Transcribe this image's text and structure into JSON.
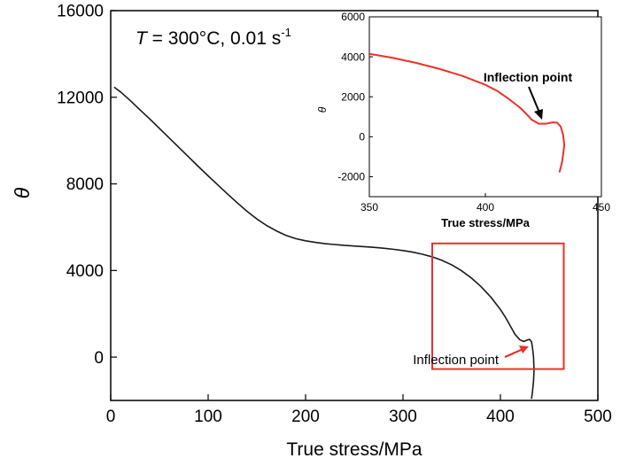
{
  "chart_data": [
    {
      "type": "line",
      "id": "main",
      "xlabel": "True stress/MPa",
      "ylabel": "θ",
      "xlim": [
        0,
        500
      ],
      "ylim": [
        -2000,
        16000
      ],
      "xticks": [
        "0",
        "100",
        "200",
        "300",
        "400",
        "500"
      ],
      "xtick_values": [
        0,
        100,
        200,
        300,
        400,
        500
      ],
      "yticks": [
        "0",
        "4000",
        "8000",
        "12000",
        "16000"
      ],
      "ytick_values": [
        0,
        4000,
        8000,
        12000,
        16000
      ],
      "grid": false,
      "title_parts": {
        "italic": "T",
        "main": " = 300°C, 0.01 s",
        "sup": "-1"
      },
      "annotation": "Inflection point",
      "highlight_box": {
        "x": [
          330,
          465
        ],
        "y": [
          -550,
          5250
        ]
      },
      "series": [
        {
          "color": "#1a1a1a",
          "x": [
            4,
            10,
            20,
            30,
            40,
            50,
            60,
            70,
            80,
            90,
            100,
            110,
            120,
            130,
            140,
            150,
            160,
            170,
            180,
            190,
            200,
            210,
            220,
            230,
            240,
            250,
            260,
            270,
            280,
            290,
            300,
            310,
            320,
            330,
            340,
            350,
            360,
            370,
            380,
            390,
            400,
            405,
            410,
            415,
            420,
            424,
            427,
            430,
            432,
            433,
            434,
            434.5,
            434,
            433,
            432
          ],
          "y": [
            12450,
            12250,
            11850,
            11420,
            11000,
            10560,
            10120,
            9680,
            9240,
            8800,
            8370,
            7950,
            7530,
            7120,
            6730,
            6380,
            6080,
            5830,
            5620,
            5470,
            5370,
            5300,
            5240,
            5200,
            5160,
            5130,
            5100,
            5070,
            5030,
            4980,
            4920,
            4850,
            4750,
            4630,
            4470,
            4260,
            3990,
            3660,
            3260,
            2780,
            2200,
            1850,
            1450,
            1050,
            800,
            720,
            780,
            820,
            700,
            400,
            0,
            -600,
            -1100,
            -1550,
            -1900
          ]
        }
      ]
    },
    {
      "type": "line",
      "id": "inset",
      "xlabel": "True stress/MPa",
      "ylabel": "θ",
      "xlim": [
        350,
        450
      ],
      "ylim": [
        -3000,
        6000
      ],
      "xticks": [
        "350",
        "400",
        "450"
      ],
      "xtick_values": [
        350,
        400,
        450
      ],
      "yticks": [
        "-2000",
        "0",
        "2000",
        "4000",
        "6000"
      ],
      "ytick_values": [
        -2000,
        0,
        2000,
        4000,
        6000
      ],
      "grid": false,
      "annotation": "Inflection point",
      "series": [
        {
          "color": "#e8322a",
          "x": [
            350,
            360,
            370,
            380,
            390,
            400,
            405,
            410,
            415,
            418,
            420,
            423,
            426,
            429,
            431,
            432.5,
            433.5,
            434,
            433.5,
            433,
            432
          ],
          "y": [
            4150,
            3950,
            3700,
            3400,
            3050,
            2600,
            2300,
            1900,
            1450,
            1100,
            850,
            650,
            650,
            720,
            700,
            500,
            100,
            -400,
            -900,
            -1300,
            -1750
          ]
        }
      ]
    }
  ]
}
